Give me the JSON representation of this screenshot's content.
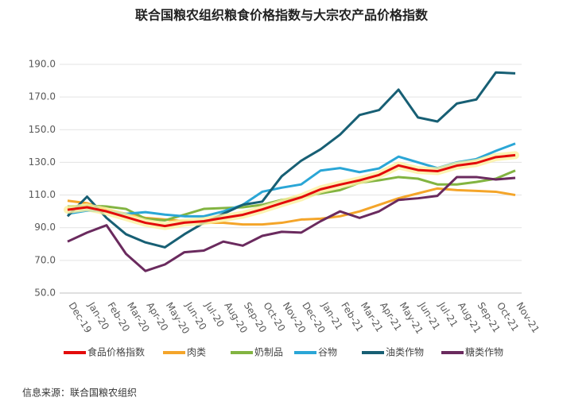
{
  "chart_data": {
    "type": "line",
    "title": "联合国粮农组织粮食价格指数与大宗农产品价格指数",
    "source": "信息来源：联合国粮农组织",
    "categories": [
      "Dec-19",
      "Jan-20",
      "Feb-20",
      "Mar-20",
      "Apr-20",
      "May-20",
      "Jun-20",
      "Jul-20",
      "Aug-20",
      "Sep-20",
      "Oct-20",
      "Nov-20",
      "Dec-20",
      "Jan-21",
      "Feb-21",
      "Mar-21",
      "Apr-21",
      "May-21",
      "Jun-21",
      "Jul-21",
      "Aug-21",
      "Sep-21",
      "Oct-21",
      "Nov-21"
    ],
    "ylim": [
      50,
      190
    ],
    "yticks": [
      {
        "value": 50,
        "label": "50.0"
      },
      {
        "value": 70,
        "label": "70.0"
      },
      {
        "value": 90,
        "label": "90.0"
      },
      {
        "value": 110,
        "label": "110.0"
      },
      {
        "value": 130,
        "label": "130.0"
      },
      {
        "value": 150,
        "label": "150.0"
      },
      {
        "value": 170,
        "label": "170.0"
      },
      {
        "value": 190,
        "label": "190.0"
      }
    ],
    "grid": true,
    "legend": "bottom",
    "series": [
      {
        "name": "食品价格指数",
        "color": "#e30b0b",
        "values": [
          101,
          102.5,
          100,
          96.5,
          93,
          91,
          93.1,
          94,
          96,
          97.9,
          101.2,
          105,
          108.6,
          113.5,
          116.4,
          119,
          122.3,
          128.1,
          125.3,
          124.6,
          128,
          129.6,
          133.2,
          134.4
        ]
      },
      {
        "name": "肉类",
        "color": "#f4a52a",
        "values": [
          106.5,
          105,
          101,
          98.5,
          96,
          95,
          94,
          93,
          93,
          92,
          92,
          93,
          95,
          95.5,
          97,
          100,
          104,
          108,
          111,
          114,
          113,
          112.5,
          112,
          110
        ]
      },
      {
        "name": "奶制品",
        "color": "#82b441",
        "values": [
          103,
          103.5,
          103,
          101.5,
          95.5,
          94.5,
          98,
          101.5,
          102,
          102.5,
          104,
          107,
          108.8,
          111,
          113,
          117.5,
          119,
          121,
          120,
          116.5,
          116.5,
          118,
          120,
          125
        ]
      },
      {
        "name": "谷物",
        "color": "#2aa6d6",
        "values": [
          98.5,
          100.5,
          100,
          98.5,
          99.5,
          98,
          97,
          97,
          100,
          104,
          112,
          114.5,
          116.5,
          125,
          126.5,
          124,
          126.3,
          133.5,
          130,
          126.5,
          130,
          132,
          137,
          141.5
        ]
      },
      {
        "name": "油类作物",
        "color": "#175f74",
        "values": [
          97,
          109,
          96,
          86,
          81,
          78,
          86,
          93,
          98.5,
          104,
          106,
          121.5,
          131,
          138,
          147,
          159,
          162,
          174.5,
          157.5,
          155,
          166,
          168.5,
          185,
          184.5
        ]
      },
      {
        "name": "糖类作物",
        "color": "#6a2a5e",
        "values": [
          81.5,
          87,
          91.5,
          74,
          63.5,
          67.5,
          75,
          76,
          81.5,
          79,
          85,
          87.5,
          87,
          94,
          100,
          96,
          100,
          107,
          108,
          109.5,
          121,
          121,
          119.5,
          120.5
        ]
      }
    ]
  }
}
